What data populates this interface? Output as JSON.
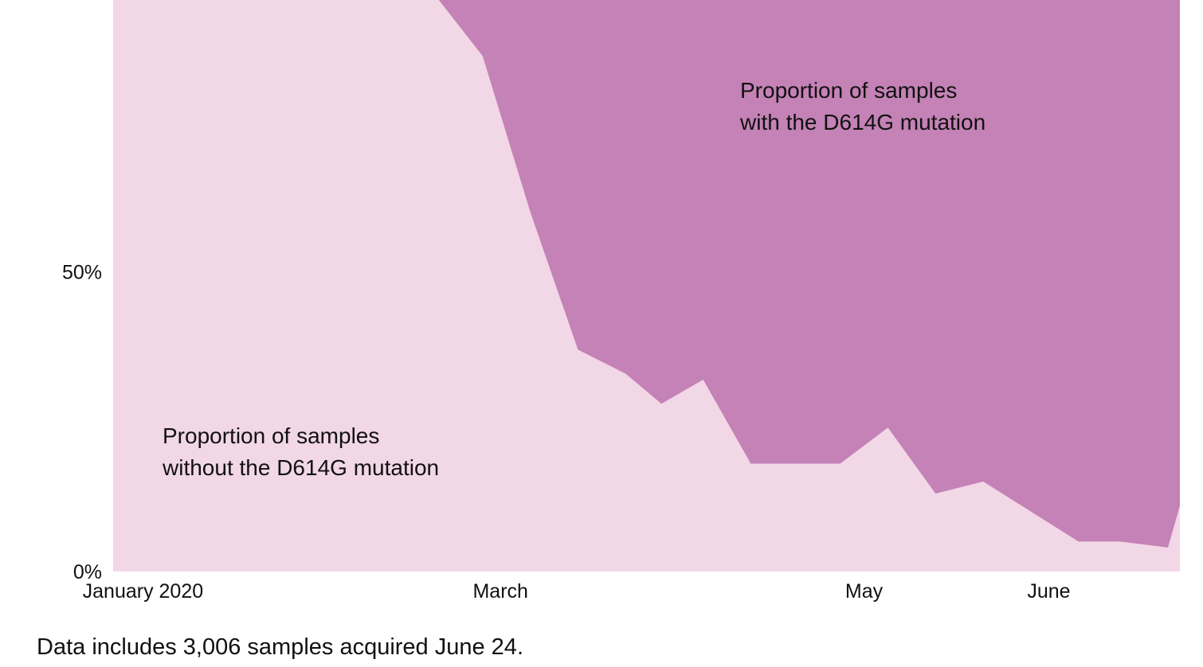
{
  "chart_data": {
    "type": "area",
    "stacked": true,
    "normalized": true,
    "ylim": [
      0,
      100
    ],
    "y_unit": "%",
    "y_ticks": [
      {
        "value": 50,
        "label": "50%"
      },
      {
        "value": 0,
        "label": "0%"
      }
    ],
    "x_ticks": [
      {
        "date": "2020-01-01",
        "label": "January 2020"
      },
      {
        "date": "2020-03-01",
        "label": "March"
      },
      {
        "date": "2020-05-01",
        "label": "May"
      },
      {
        "date": "2020-06-01",
        "label": "June"
      }
    ],
    "x_range": [
      "2019-12-27",
      "2020-06-23"
    ],
    "series": [
      {
        "key": "without",
        "color": "#f2d7e6",
        "annotation": [
          "Proportion of samples",
          "without the D614G mutation"
        ],
        "points": [
          {
            "date": "2019-12-27",
            "value": 100
          },
          {
            "date": "2020-02-16",
            "value": 100
          },
          {
            "date": "2020-02-27",
            "value": 86
          },
          {
            "date": "2020-03-06",
            "value": 60
          },
          {
            "date": "2020-03-14",
            "value": 37
          },
          {
            "date": "2020-03-22",
            "value": 33
          },
          {
            "date": "2020-03-28",
            "value": 28
          },
          {
            "date": "2020-04-04",
            "value": 32
          },
          {
            "date": "2020-04-12",
            "value": 18
          },
          {
            "date": "2020-04-20",
            "value": 18
          },
          {
            "date": "2020-04-27",
            "value": 18
          },
          {
            "date": "2020-05-05",
            "value": 24
          },
          {
            "date": "2020-05-13",
            "value": 13
          },
          {
            "date": "2020-05-21",
            "value": 15
          },
          {
            "date": "2020-05-29",
            "value": 10
          },
          {
            "date": "2020-06-06",
            "value": 5
          },
          {
            "date": "2020-06-13",
            "value": 5
          },
          {
            "date": "2020-06-21",
            "value": 4
          },
          {
            "date": "2020-06-23",
            "value": 11
          }
        ]
      },
      {
        "key": "with",
        "color": "#c482b6",
        "annotation": [
          "Proportion of samples",
          "with the D614G mutation"
        ]
      }
    ]
  },
  "footnote": "Data includes 3,006 samples acquired June 24."
}
